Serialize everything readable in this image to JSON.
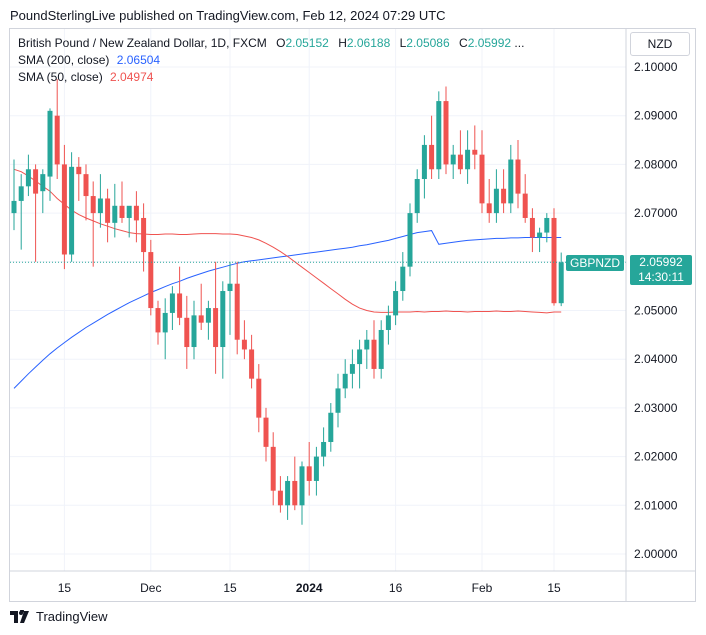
{
  "header": {
    "text": "PoundSterlingLive published on TradingView.com, Feb 12, 2024 07:29 UTC"
  },
  "legend": {
    "title": "British Pound / New Zealand Dollar, 1D, FXCM",
    "o_label": "O",
    "o_value": "2.05152",
    "h_label": "H",
    "h_value": "2.06188",
    "l_label": "L",
    "l_value": "2.05086",
    "c_label": "C",
    "c_value": "2.05992",
    "ellipsis": "...",
    "sma200_label": "SMA (200, close)",
    "sma200_value": "2.06504",
    "sma50_label": "SMA (50, close)",
    "sma50_value": "2.04974"
  },
  "currency": "NZD",
  "last_price": {
    "symbol": "GBPNZD",
    "price": "2.05992",
    "countdown": "14:30:11"
  },
  "footer": {
    "brand": "TradingView"
  },
  "colors": {
    "up": "#26a69a",
    "down": "#ef5350",
    "sma200": "#2962ff",
    "sma50": "#ef5350",
    "grid": "#f0f3fa"
  },
  "chart_data": {
    "type": "candlestick",
    "title": "British Pound / New Zealand Dollar, 1D, FXCM",
    "ylim": [
      1.996,
      2.106
    ],
    "y_ticks": [
      "2.10000",
      "2.09000",
      "2.08000",
      "2.07000",
      "2.06000",
      "2.05000",
      "2.04000",
      "2.03000",
      "2.02000",
      "2.01000",
      "2.00000"
    ],
    "x_ticks": [
      {
        "label": "15",
        "index": 7,
        "bold": false
      },
      {
        "label": "Dec",
        "index": 19,
        "bold": false
      },
      {
        "label": "15",
        "index": 30,
        "bold": false
      },
      {
        "label": "2024",
        "index": 41,
        "bold": true
      },
      {
        "label": "16",
        "index": 53,
        "bold": false
      },
      {
        "label": "Feb",
        "index": 65,
        "bold": false
      },
      {
        "label": "15",
        "index": 75,
        "bold": false
      }
    ],
    "x_count": 78,
    "ohlc": [
      [
        2.07,
        2.081,
        2.0665,
        2.0725
      ],
      [
        2.0725,
        2.078,
        2.0625,
        2.0755
      ],
      [
        2.0755,
        2.082,
        2.0735,
        2.079
      ],
      [
        2.079,
        2.08,
        2.06,
        2.074
      ],
      [
        2.0745,
        2.079,
        2.07,
        2.078
      ],
      [
        2.0775,
        2.0915,
        2.0725,
        2.091
      ],
      [
        2.09,
        2.0975,
        2.077,
        2.08
      ],
      [
        2.08,
        2.084,
        2.0585,
        2.0615
      ],
      [
        2.0615,
        2.0825,
        2.06,
        2.0795
      ],
      [
        2.0795,
        2.0815,
        2.0725,
        2.078
      ],
      [
        2.078,
        2.08,
        2.0685,
        2.0735
      ],
      [
        2.0735,
        2.0765,
        2.059,
        2.07
      ],
      [
        2.07,
        2.078,
        2.067,
        2.073
      ],
      [
        2.073,
        2.075,
        2.064,
        2.068
      ],
      [
        2.068,
        2.076,
        2.065,
        2.0715
      ],
      [
        2.0715,
        2.0765,
        2.068,
        2.069
      ],
      [
        2.069,
        2.071,
        2.065,
        2.0715
      ],
      [
        2.0715,
        2.0745,
        2.064,
        2.0685
      ],
      [
        2.069,
        2.072,
        2.058,
        2.062
      ],
      [
        2.062,
        2.0645,
        2.049,
        2.0505
      ],
      [
        2.0505,
        2.052,
        2.043,
        2.0455
      ],
      [
        2.0455,
        2.0525,
        2.04,
        2.0495
      ],
      [
        2.0495,
        2.055,
        2.046,
        2.0535
      ],
      [
        2.0535,
        2.059,
        2.047,
        2.0485
      ],
      [
        2.0485,
        2.053,
        2.038,
        2.0425
      ],
      [
        2.0425,
        2.052,
        2.04,
        2.049
      ],
      [
        2.049,
        2.0555,
        2.046,
        2.0475
      ],
      [
        2.0475,
        2.052,
        2.044,
        2.0505
      ],
      [
        2.0505,
        2.06,
        2.037,
        2.0425
      ],
      [
        2.0425,
        2.056,
        2.036,
        2.054
      ],
      [
        2.054,
        2.06,
        2.045,
        2.0555
      ],
      [
        2.0555,
        2.06,
        2.041,
        2.044
      ],
      [
        2.044,
        2.048,
        2.04,
        2.042
      ],
      [
        2.042,
        2.045,
        2.034,
        2.036
      ],
      [
        2.036,
        2.039,
        2.025,
        2.028
      ],
      [
        2.028,
        2.03,
        2.019,
        2.022
      ],
      [
        2.022,
        2.025,
        2.01,
        2.013
      ],
      [
        2.013,
        2.016,
        2.0085,
        2.01
      ],
      [
        2.01,
        2.016,
        2.007,
        2.015
      ],
      [
        2.015,
        2.02,
        2.009,
        2.01
      ],
      [
        2.01,
        2.019,
        2.006,
        2.018
      ],
      [
        2.018,
        2.023,
        2.012,
        2.015
      ],
      [
        2.015,
        2.022,
        2.012,
        2.02
      ],
      [
        2.02,
        2.026,
        2.018,
        2.023
      ],
      [
        2.023,
        2.031,
        2.021,
        2.029
      ],
      [
        2.029,
        2.037,
        2.026,
        2.034
      ],
      [
        2.034,
        2.04,
        2.032,
        2.037
      ],
      [
        2.037,
        2.042,
        2.034,
        2.039
      ],
      [
        2.039,
        2.044,
        2.034,
        2.042
      ],
      [
        2.042,
        2.046,
        2.038,
        2.044
      ],
      [
        2.044,
        2.048,
        2.036,
        2.038
      ],
      [
        2.038,
        2.048,
        2.036,
        2.046
      ],
      [
        2.046,
        2.051,
        2.043,
        2.049
      ],
      [
        2.049,
        2.056,
        2.047,
        2.054
      ],
      [
        2.054,
        2.062,
        2.052,
        2.059
      ],
      [
        2.059,
        2.072,
        2.057,
        2.07
      ],
      [
        2.07,
        2.079,
        2.068,
        2.077
      ],
      [
        2.077,
        2.086,
        2.073,
        2.084
      ],
      [
        2.084,
        2.09,
        2.077,
        2.079
      ],
      [
        2.079,
        2.095,
        2.077,
        2.093
      ],
      [
        2.093,
        2.096,
        2.078,
        2.08
      ],
      [
        2.08,
        2.084,
        2.077,
        2.082
      ],
      [
        2.082,
        2.087,
        2.078,
        2.079
      ],
      [
        2.079,
        2.087,
        2.076,
        2.083
      ],
      [
        2.083,
        2.088,
        2.079,
        2.082
      ],
      [
        2.082,
        2.087,
        2.07,
        2.072
      ],
      [
        2.072,
        2.077,
        2.068,
        2.07
      ],
      [
        2.07,
        2.079,
        2.068,
        2.075
      ],
      [
        2.075,
        2.079,
        2.07,
        2.072
      ],
      [
        2.072,
        2.084,
        2.07,
        2.081
      ],
      [
        2.081,
        2.085,
        2.071,
        2.074
      ],
      [
        2.074,
        2.078,
        2.068,
        2.069
      ],
      [
        2.069,
        2.071,
        2.062,
        2.065
      ],
      [
        2.065,
        2.067,
        2.062,
        2.066
      ],
      [
        2.066,
        2.07,
        2.064,
        2.069
      ],
      [
        2.069,
        2.071,
        2.051,
        2.0515
      ],
      [
        2.0515,
        2.0619,
        2.0509,
        2.0599
      ]
    ],
    "sma200": [
      2.034,
      2.0355,
      2.037,
      2.0384,
      2.0398,
      2.0411,
      2.0423,
      2.0434,
      2.0445,
      2.0455,
      2.0465,
      2.0474,
      2.0483,
      2.0492,
      2.05,
      2.0508,
      2.0516,
      2.0523,
      2.053,
      2.0537,
      2.0543,
      2.0549,
      2.0555,
      2.056,
      2.0566,
      2.0571,
      2.0576,
      2.0581,
      2.0585,
      2.0589,
      2.0593,
      2.0597,
      2.06,
      2.0602,
      2.0604,
      2.0606,
      2.0608,
      2.061,
      2.0612,
      2.0614,
      2.0616,
      2.0618,
      2.062,
      2.0622,
      2.0624,
      2.0626,
      2.0628,
      2.063,
      2.0633,
      2.0635,
      2.0638,
      2.0641,
      2.0644,
      2.0648,
      2.0652,
      2.0656,
      2.066,
      2.0662,
      2.0664,
      2.0636,
      2.0638,
      2.064,
      2.0642,
      2.0644,
      2.0645,
      2.0646,
      2.0647,
      2.0648,
      2.0648,
      2.0649,
      2.0649,
      2.065,
      2.065,
      2.065,
      2.065,
      2.065,
      2.065
    ],
    "sma50": [
      2.079,
      2.0785,
      2.0776,
      2.0766,
      2.0755,
      2.0745,
      2.073,
      2.0718,
      2.0706,
      2.0697,
      2.069,
      2.0684,
      2.0678,
      2.0673,
      2.0668,
      2.0664,
      2.066,
      2.0658,
      2.0657,
      2.0656,
      2.0656,
      2.0657,
      2.0657,
      2.0656,
      2.0656,
      2.0657,
      2.0658,
      2.0658,
      2.0658,
      2.0657,
      2.0657,
      2.0656,
      2.0653,
      2.065,
      2.0645,
      2.0638,
      2.063,
      2.0621,
      2.0611,
      2.06,
      2.0589,
      2.0578,
      2.0567,
      2.0556,
      2.0545,
      2.0534,
      2.0523,
      2.0513,
      2.0505,
      2.05,
      2.0497,
      2.0496,
      2.0496,
      2.0497,
      2.0497,
      2.0497,
      2.0498,
      2.0497,
      2.0498,
      2.0498,
      2.0499,
      2.0498,
      2.0498,
      2.0497,
      2.0498,
      2.0498,
      2.0498,
      2.0499,
      2.0498,
      2.0498,
      2.0499,
      2.0498,
      2.0497,
      2.0496,
      2.0495,
      2.0497,
      2.0497
    ],
    "last_price_line": 2.05992
  }
}
